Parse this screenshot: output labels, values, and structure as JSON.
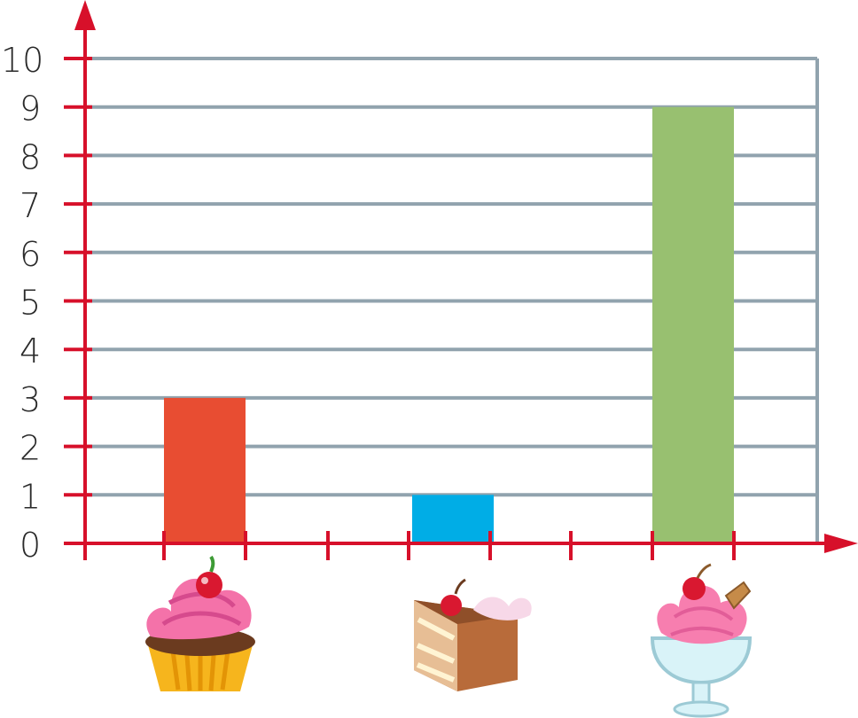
{
  "chart_data": {
    "type": "bar",
    "categories": [
      "cupcake",
      "cake-slice",
      "ice-cream-sundae"
    ],
    "values": [
      3,
      1,
      9
    ],
    "bar_colors": [
      "#E84D32",
      "#00ADE6",
      "#98C070"
    ],
    "y_ticks": [
      "0",
      "1",
      "2",
      "3",
      "4",
      "5",
      "6",
      "7",
      "8",
      "9",
      "10"
    ],
    "ylim": [
      0,
      10
    ],
    "grid": true,
    "title": "",
    "xlabel": "",
    "ylabel": ""
  },
  "colors": {
    "axis": "#D7102A",
    "grid": "#91A3AE",
    "text": "#2A2A2A"
  },
  "icons": [
    "cupcake-icon",
    "cake-slice-icon",
    "ice-cream-sundae-icon"
  ]
}
